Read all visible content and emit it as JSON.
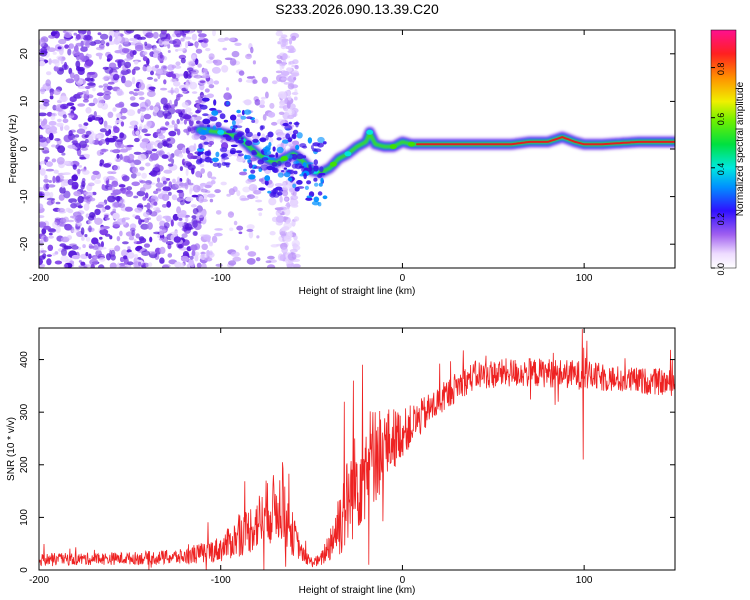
{
  "title": "S233.2026.090.13.39.C20",
  "chart_data": [
    {
      "type": "heatmap",
      "name": "spectrogram",
      "xlabel": "Height of straight line (km)",
      "ylabel": "Frequency (Hz)",
      "xlim": [
        -200,
        150
      ],
      "ylim": [
        -25,
        25
      ],
      "xticks": [
        -200,
        -100,
        0,
        100
      ],
      "yticks": [
        -20,
        -10,
        0,
        10,
        20
      ],
      "ridge": {
        "description": "dominant frequency track",
        "x": [
          -110,
          -100,
          -90,
          -80,
          -70,
          -60,
          -55,
          -50,
          -45,
          -40,
          -35,
          -30,
          -25,
          -20,
          -18,
          -15,
          -10,
          -5,
          0,
          5,
          10,
          20,
          40,
          60,
          70,
          80,
          88,
          95,
          100,
          110,
          130,
          150
        ],
        "freq": [
          4,
          3.5,
          2.5,
          -1,
          -3,
          -1,
          -2.5,
          -4.5,
          -5,
          -4,
          -2,
          -1,
          0.5,
          1.5,
          3.5,
          1,
          0.5,
          0.5,
          1.5,
          1,
          1,
          1,
          1,
          1,
          1.5,
          1.5,
          2.5,
          1.5,
          1,
          1,
          1.5,
          1.5
        ]
      },
      "colorbar": {
        "label": "Normalized spectral amplitude",
        "min": 0.0,
        "max": 0.95,
        "ticks": [
          "0.0",
          "0.2",
          "0.4",
          "0.6",
          "0.8"
        ],
        "tick_values": [
          0.0,
          0.2,
          0.4,
          0.6,
          0.8
        ]
      }
    },
    {
      "type": "line",
      "name": "snr",
      "color": "#ee2222",
      "xlabel": "Height of straight line (km)",
      "ylabel": "SNR (10 * v/v)",
      "xlim": [
        -200,
        150
      ],
      "ylim": [
        0,
        460
      ],
      "xticks": [
        -200,
        -100,
        0,
        100
      ],
      "yticks": [
        0,
        100,
        200,
        300,
        400
      ],
      "trend": {
        "x": [
          -200,
          -150,
          -120,
          -100,
          -85,
          -75,
          -68,
          -62,
          -55,
          -50,
          -45,
          -40,
          -35,
          -30,
          -25,
          -20,
          -15,
          -10,
          -5,
          0,
          10,
          20,
          30,
          40,
          60,
          80,
          100,
          120,
          150
        ],
        "y": [
          20,
          22,
          25,
          40,
          75,
          105,
          125,
          80,
          30,
          15,
          18,
          50,
          90,
          130,
          170,
          200,
          220,
          230,
          250,
          260,
          290,
          320,
          350,
          370,
          375,
          375,
          370,
          362,
          355
        ],
        "amp": [
          12,
          12,
          15,
          25,
          45,
          60,
          70,
          50,
          15,
          10,
          12,
          35,
          70,
          90,
          100,
          110,
          95,
          80,
          60,
          45,
          35,
          30,
          28,
          28,
          28,
          28,
          28,
          26,
          25
        ]
      },
      "spikes": [
        {
          "x": -66,
          "y": 205
        },
        {
          "x": -75,
          "y": 170
        },
        {
          "x": -22,
          "y": 390
        },
        {
          "x": -27,
          "y": 360
        },
        {
          "x": -32,
          "y": 320
        },
        {
          "x": -15,
          "y": 300
        },
        {
          "x": 0,
          "y": 270
        },
        {
          "x": 99,
          "y": 458
        },
        {
          "x": 99.5,
          "y": 210
        }
      ]
    }
  ]
}
